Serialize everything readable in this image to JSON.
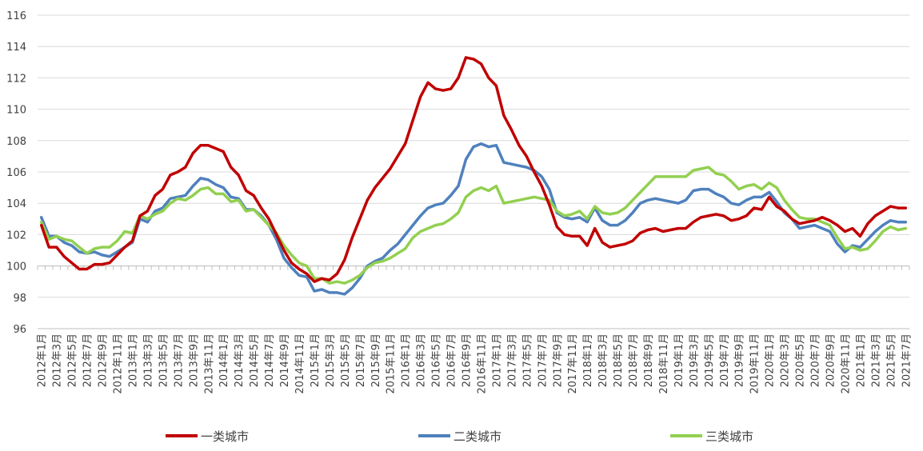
{
  "chart_data": {
    "type": "line",
    "title": "",
    "xlabel": "",
    "ylabel": "",
    "ylim": [
      96,
      116
    ],
    "yticks": [
      96,
      98,
      100,
      102,
      104,
      106,
      108,
      110,
      112,
      114,
      116
    ],
    "grid": true,
    "legend_position": "bottom",
    "x": [
      "2012年1月",
      "2012年2月",
      "2012年3月",
      "2012年4月",
      "2012年5月",
      "2012年6月",
      "2012年7月",
      "2012年8月",
      "2012年9月",
      "2012年10月",
      "2012年11月",
      "2012年12月",
      "2013年1月",
      "2013年2月",
      "2013年3月",
      "2013年4月",
      "2013年5月",
      "2013年6月",
      "2013年7月",
      "2013年8月",
      "2013年9月",
      "2013年10月",
      "2013年11月",
      "2013年12月",
      "2014年1月",
      "2014年2月",
      "2014年3月",
      "2014年4月",
      "2014年5月",
      "2014年6月",
      "2014年7月",
      "2014年8月",
      "2014年9月",
      "2014年10月",
      "2014年11月",
      "2014年12月",
      "2015年1月",
      "2015年2月",
      "2015年3月",
      "2015年4月",
      "2015年5月",
      "2015年6月",
      "2015年7月",
      "2015年8月",
      "2015年9月",
      "2015年10月",
      "2015年11月",
      "2015年12月",
      "2016年1月",
      "2016年2月",
      "2016年3月",
      "2016年4月",
      "2016年5月",
      "2016年6月",
      "2016年7月",
      "2016年8月",
      "2016年9月",
      "2016年10月",
      "2016年11月",
      "2016年12月",
      "2017年1月",
      "2017年2月",
      "2017年3月",
      "2017年4月",
      "2017年5月",
      "2017年6月",
      "2017年7月",
      "2017年8月",
      "2017年9月",
      "2017年10月",
      "2017年11月",
      "2017年12月",
      "2018年1月",
      "2018年2月",
      "2018年3月",
      "2018年4月",
      "2018年5月",
      "2018年6月",
      "2018年7月",
      "2018年8月",
      "2018年9月",
      "2018年10月",
      "2018年11月",
      "2018年12月",
      "2019年1月",
      "2019年2月",
      "2019年3月",
      "2019年4月",
      "2019年5月",
      "2019年6月",
      "2019年7月",
      "2019年8月",
      "2019年9月",
      "2019年10月",
      "2019年11月",
      "2019年12月",
      "2020年1月",
      "2020年2月",
      "2020年3月",
      "2020年4月",
      "2020年5月",
      "2020年6月",
      "2020年7月",
      "2020年8月",
      "2020年9月",
      "2020年10月",
      "2020年11月",
      "2020年12月",
      "2021年1月",
      "2021年2月",
      "2021年3月",
      "2021年4月",
      "2021年5月",
      "2021年6月",
      "2021年7月"
    ],
    "tick_labels": [
      "2012年1月",
      "2012年3月",
      "2012年5月",
      "2012年7月",
      "2012年9月",
      "2012年11月",
      "2013年1月",
      "2013年3月",
      "2013年5月",
      "2013年7月",
      "2013年9月",
      "2013年11月",
      "2014年1月",
      "2014年3月",
      "2014年5月",
      "2014年7月",
      "2014年9月",
      "2014年11月",
      "2015年1月",
      "2015年3月",
      "2015年5月",
      "2015年7月",
      "2015年9月",
      "2015年11月",
      "2016年1月",
      "2016年3月",
      "2016年5月",
      "2016年7月",
      "2016年9月",
      "2016年11月",
      "2017年1月",
      "2017年3月",
      "2017年5月",
      "2017年7月",
      "2017年9月",
      "2017年11月",
      "2018年1月",
      "2018年3月",
      "2018年5月",
      "2018年7月",
      "2018年9月",
      "2018年11月",
      "2019年1月",
      "2019年3月",
      "2019年5月",
      "2019年7月",
      "2019年9月",
      "2019年11月",
      "2020年1月",
      "2020年3月",
      "2020年5月",
      "2020年7月",
      "2020年9月",
      "2020年11月",
      "2021年1月",
      "2021年3月",
      "2021年5月",
      "2021年7月"
    ],
    "series": [
      {
        "name": "一类城市",
        "color": "#C00000",
        "values": [
          102.6,
          101.2,
          101.2,
          100.6,
          100.2,
          99.8,
          99.8,
          100.1,
          100.1,
          100.2,
          100.7,
          101.2,
          101.6,
          103.2,
          103.5,
          104.5,
          104.9,
          105.8,
          106.0,
          106.3,
          107.2,
          107.7,
          107.7,
          107.5,
          107.3,
          106.3,
          105.8,
          104.8,
          104.5,
          103.7,
          103.0,
          102.0,
          101.0,
          100.2,
          99.8,
          99.5,
          99.0,
          99.2,
          99.1,
          99.5,
          100.4,
          101.8,
          103.0,
          104.2,
          105.0,
          105.6,
          106.2,
          107.0,
          107.8,
          109.3,
          110.8,
          111.7,
          111.3,
          111.2,
          111.3,
          112.0,
          113.3,
          113.2,
          112.9,
          112.0,
          111.5,
          109.6,
          108.7,
          107.7,
          107.0,
          106.0,
          105.1,
          103.9,
          102.5,
          102.0,
          101.9,
          101.9,
          101.3,
          102.4,
          101.5,
          101.2,
          101.3,
          101.4,
          101.6,
          102.1,
          102.3,
          102.4,
          102.2,
          102.3,
          102.4,
          102.4,
          102.8,
          103.1,
          103.2,
          103.3,
          103.2,
          102.9,
          103.0,
          103.2,
          103.7,
          103.6,
          104.4,
          103.8,
          103.5,
          103.0,
          102.7,
          102.8,
          102.9,
          103.1,
          102.9,
          102.6,
          102.2,
          102.4,
          101.9,
          102.7,
          103.2,
          103.5,
          103.8,
          103.7,
          103.7
        ]
      },
      {
        "name": "二类城市",
        "color": "#4F81BD",
        "values": [
          103.1,
          101.9,
          101.9,
          101.5,
          101.3,
          100.9,
          100.8,
          100.9,
          100.7,
          100.6,
          100.9,
          101.2,
          101.5,
          103.0,
          102.8,
          103.5,
          103.7,
          104.3,
          104.4,
          104.5,
          105.1,
          105.6,
          105.5,
          105.2,
          105.0,
          104.4,
          104.3,
          103.6,
          103.6,
          103.2,
          102.6,
          101.7,
          100.5,
          99.9,
          99.4,
          99.3,
          98.4,
          98.5,
          98.3,
          98.3,
          98.2,
          98.6,
          99.2,
          100.0,
          100.3,
          100.5,
          101.0,
          101.4,
          102.0,
          102.6,
          103.2,
          103.7,
          103.9,
          104.0,
          104.5,
          105.1,
          106.8,
          107.6,
          107.8,
          107.6,
          107.7,
          106.6,
          106.5,
          106.4,
          106.3,
          106.1,
          105.7,
          104.9,
          103.4,
          103.1,
          103.0,
          103.1,
          102.8,
          103.7,
          102.9,
          102.6,
          102.6,
          102.9,
          103.4,
          104.0,
          104.2,
          104.3,
          104.2,
          104.1,
          104.0,
          104.2,
          104.8,
          104.9,
          104.9,
          104.6,
          104.4,
          104.0,
          103.9,
          104.2,
          104.4,
          104.4,
          104.7,
          104.1,
          103.4,
          103.0,
          102.4,
          102.5,
          102.6,
          102.4,
          102.2,
          101.4,
          100.9,
          101.3,
          101.2,
          101.7,
          102.2,
          102.6,
          102.9,
          102.8,
          102.8
        ]
      },
      {
        "name": "三类城市",
        "color": "#92D050",
        "values": [
          102.8,
          101.7,
          101.9,
          101.7,
          101.6,
          101.2,
          100.8,
          101.1,
          101.2,
          101.2,
          101.6,
          102.2,
          102.1,
          103.2,
          103.0,
          103.3,
          103.5,
          104.0,
          104.3,
          104.2,
          104.5,
          104.9,
          105.0,
          104.6,
          104.6,
          104.1,
          104.2,
          103.5,
          103.6,
          103.1,
          102.6,
          102.1,
          101.3,
          100.7,
          100.2,
          100.0,
          99.2,
          99.2,
          98.9,
          99.0,
          98.9,
          99.1,
          99.4,
          99.9,
          100.2,
          100.3,
          100.5,
          100.8,
          101.1,
          101.8,
          102.2,
          102.4,
          102.6,
          102.7,
          103.0,
          103.4,
          104.4,
          104.8,
          105.0,
          104.8,
          105.1,
          104.0,
          104.1,
          104.2,
          104.3,
          104.4,
          104.3,
          104.2,
          103.5,
          103.2,
          103.3,
          103.5,
          103.0,
          103.8,
          103.4,
          103.3,
          103.4,
          103.7,
          104.2,
          104.7,
          105.2,
          105.7,
          105.7,
          105.7,
          105.7,
          105.7,
          106.1,
          106.2,
          106.3,
          105.9,
          105.8,
          105.4,
          104.9,
          105.1,
          105.2,
          104.9,
          105.3,
          105.0,
          104.2,
          103.6,
          103.1,
          103.0,
          103.0,
          102.8,
          102.6,
          101.8,
          101.1,
          101.2,
          101.0,
          101.1,
          101.6,
          102.2,
          102.5,
          102.3,
          102.4
        ]
      }
    ]
  }
}
